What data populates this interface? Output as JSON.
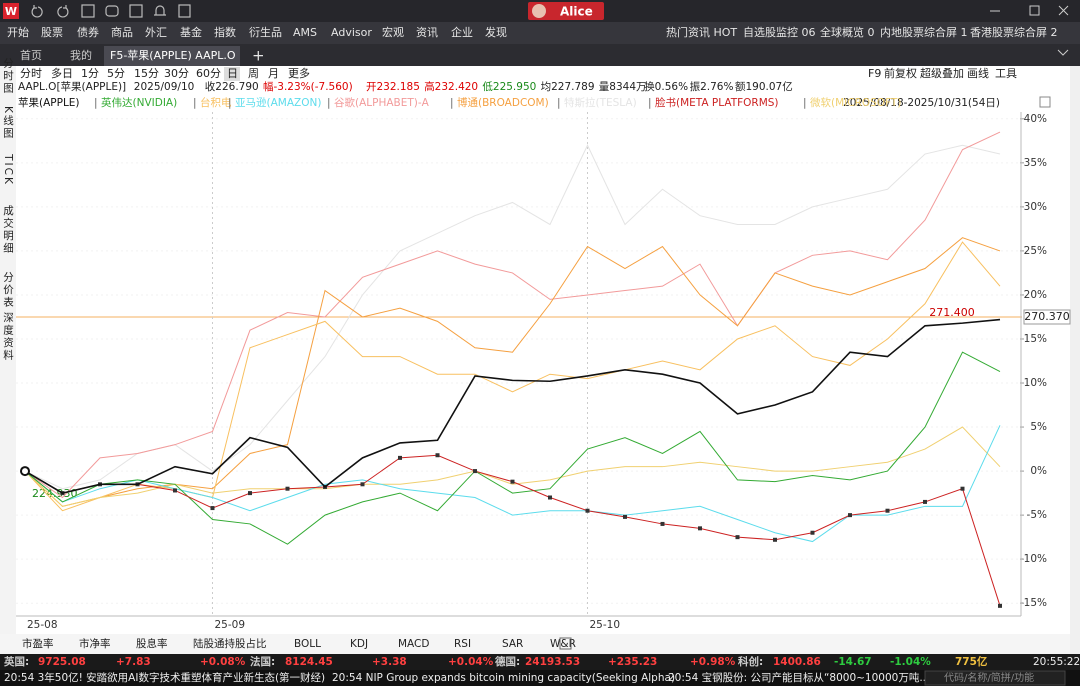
{
  "logo": "W",
  "user": "Alice",
  "menu": [
    "开始",
    "股票",
    "债券",
    "商品",
    "外汇",
    "基金",
    "指数",
    "衍生品",
    "AMS",
    "Advisor",
    "宏观",
    "资讯",
    "企业",
    "发现"
  ],
  "menu_right": [
    "热门资讯 HOT",
    "自选股监控 06",
    "全球概览 0",
    "内地股票综合屏 1",
    "香港股票综合屏 2"
  ],
  "tabs": [
    "首页",
    "我的",
    "F5-苹果(APPLE) AAPL.O"
  ],
  "periods": [
    "分时",
    "多日",
    "1分",
    "5分",
    "15分",
    "30分",
    "60分",
    "日",
    "周",
    "月",
    "更多"
  ],
  "tools": [
    "F9",
    "前复权",
    "超级叠加",
    "画线",
    "工具"
  ],
  "side_tabs": [
    "分时图",
    "K线图",
    "TICK",
    "成交明细",
    "分价表",
    "深度资料"
  ],
  "quote": [
    "AAPL.O[苹果(APPLE)]",
    "2025/09/10",
    "收226.790",
    "幅-3.23%(-7.560)",
    "开232.185",
    "高232.420",
    "低225.950",
    "均227.789",
    "量8344万",
    "换0.56%",
    "振2.76%",
    "额190.07亿"
  ],
  "indicators": [
    "市盈率",
    "市净率",
    "股息率",
    "陆股通持股占比",
    "BOLL",
    "KDJ",
    "MACD",
    "RSI",
    "SAR",
    "W&R"
  ],
  "ticker": [
    "英国:",
    "9725.08",
    "+7.83",
    "+0.08%",
    "法国:",
    "8124.45",
    "+3.38",
    "+0.04%",
    "德国:",
    "24193.53",
    "+235.23",
    "+0.98%",
    "科创:",
    "1400.86",
    "-14.67",
    "-1.04%",
    "775亿"
  ],
  "clock": "20:55:22",
  "news": [
    "20:54  3年50亿! 安踏欲用AI数字技术重塑体育产业新生态(第一财经)",
    "20:54  NIP Group expands bitcoin mining capacity(Seeking Alpha)",
    "20:54  宝钢股份: 公司产能目标从“8000~10000万吨..."
  ],
  "search_hint": "代码/名称/简拼/功能",
  "chart_data": {
    "type": "line",
    "range_label": "2025/08/18-2025/10/31(54日)",
    "categories": [
      "25-08",
      null,
      null,
      null,
      null,
      "25-09",
      null,
      null,
      null,
      null,
      null,
      null,
      null,
      null,
      null,
      "25-10",
      null,
      null,
      null,
      null,
      null,
      null,
      null,
      null,
      null,
      null,
      null
    ],
    "ylim": [
      -16,
      41
    ],
    "yticks": [
      {
        "value": -15,
        "label": "-15%"
      },
      {
        "value": -10,
        "label": "-10%"
      },
      {
        "value": -5,
        "label": "-5%"
      },
      {
        "value": 0,
        "label": "0%"
      },
      {
        "value": 5,
        "label": "5%"
      },
      {
        "value": 10,
        "label": "10%"
      },
      {
        "value": 15,
        "label": "15%"
      },
      {
        "value": 20,
        "label": "20%"
      },
      {
        "value": 25,
        "label": "25%"
      },
      {
        "value": 30,
        "label": "30%"
      },
      {
        "value": 35,
        "label": "35%"
      },
      {
        "value": 40,
        "label": "40%"
      }
    ],
    "grid": true,
    "annotations": {
      "start_price": "224.930",
      "peak_price": "271.400",
      "last_price": "270.370"
    },
    "series": [
      {
        "name": "特斯拉(TESLA)",
        "color": "#e4e4e4",
        "values": [
          0,
          -2,
          -1,
          2,
          3,
          0,
          3,
          8,
          13,
          20,
          25,
          27,
          29,
          30.5,
          28,
          37,
          28,
          32,
          29,
          28,
          28,
          30,
          31,
          32,
          36,
          37,
          36
        ]
      },
      {
        "name": "谷歌(ALPHABET)-A",
        "color": "#f29a9a",
        "values": [
          0,
          -3,
          1.5,
          2,
          3,
          4.5,
          16,
          18,
          17.5,
          22,
          23.5,
          25,
          23.5,
          22.5,
          19.5,
          20,
          20.5,
          21,
          23.5,
          16.5,
          22.5,
          24.5,
          25,
          24,
          28.5,
          36.5,
          38.5
        ]
      },
      {
        "name": "博通(BROADCOM)",
        "color": "#f5a040",
        "values": [
          0,
          -4,
          -3,
          -2,
          -1.5,
          -2,
          2,
          3,
          20.5,
          17.5,
          18.5,
          17,
          14,
          13.5,
          19,
          25.5,
          23,
          25.5,
          20,
          16.5,
          22.5,
          21,
          20,
          21.5,
          23,
          26.5,
          25
        ]
      },
      {
        "name": "台积电",
        "color": "#f8c060",
        "values": [
          0,
          -4.5,
          -3,
          -1.5,
          -2,
          -3,
          14,
          15.5,
          17,
          13,
          13,
          11,
          11,
          9,
          11,
          10.5,
          11.5,
          12.5,
          11.5,
          15,
          16.5,
          13,
          12,
          15,
          19,
          26,
          21
        ]
      },
      {
        "name": "微软(MICROSOFT)",
        "color": "#f0d070",
        "values": [
          0,
          -4,
          -3,
          -2.5,
          -1.5,
          -2.5,
          -2,
          -2,
          -2,
          -1.5,
          -1.5,
          -1,
          0,
          -1.5,
          -1,
          0,
          0.5,
          0.5,
          1,
          0.5,
          0,
          0,
          0.5,
          1,
          2.5,
          5,
          0.5
        ]
      },
      {
        "name": "亚马逊(AMAZON)",
        "color": "#5cdcec",
        "values": [
          0,
          -3.5,
          -2,
          -1,
          -2,
          -3,
          -4.5,
          -3,
          -1.5,
          -1,
          -2,
          -2.5,
          -3,
          -5,
          -4.5,
          -4.5,
          -5,
          -4.5,
          -4,
          -5.5,
          -7,
          -8,
          -5,
          -5,
          -4,
          -4,
          5.2
        ]
      },
      {
        "name": "英伟达(NVIDIA)",
        "color": "#33aa33",
        "values": [
          0,
          -3.5,
          -1.5,
          -1,
          -1.5,
          -5.5,
          -6,
          -8.3,
          -5,
          -3.5,
          -2.5,
          -4.5,
          0,
          -2.5,
          -2,
          2.5,
          3.8,
          2,
          4.5,
          -1,
          -1.2,
          -0.5,
          -1,
          0,
          5,
          13.5,
          11.3
        ]
      },
      {
        "name": "脸书(META PLATFORMS)",
        "color": "#cc2222",
        "markers": true,
        "values": [
          0,
          -2.5,
          -1.5,
          -1.5,
          -2.2,
          -4.2,
          -2.5,
          -2,
          -1.8,
          -1.5,
          1.5,
          1.8,
          0,
          -1.2,
          -3,
          -4.5,
          -5.2,
          -6,
          -6.5,
          -7.5,
          -7.8,
          -7,
          -5,
          -4.5,
          -3.5,
          -2,
          -15.3
        ]
      },
      {
        "name": "苹果(APPLE)",
        "color": "#111111",
        "values": [
          0,
          -2.5,
          -1.5,
          -1.5,
          0.5,
          -0.3,
          3.8,
          2.7,
          -1.8,
          1.5,
          3.2,
          3.5,
          10.8,
          10.3,
          10.2,
          10.8,
          11.5,
          11,
          10,
          6.5,
          7.5,
          9,
          13.5,
          13,
          16.5,
          16.8,
          17.2
        ]
      }
    ],
    "legend_order": [
      8,
      6,
      3,
      5,
      1,
      2,
      0,
      7,
      4
    ]
  }
}
